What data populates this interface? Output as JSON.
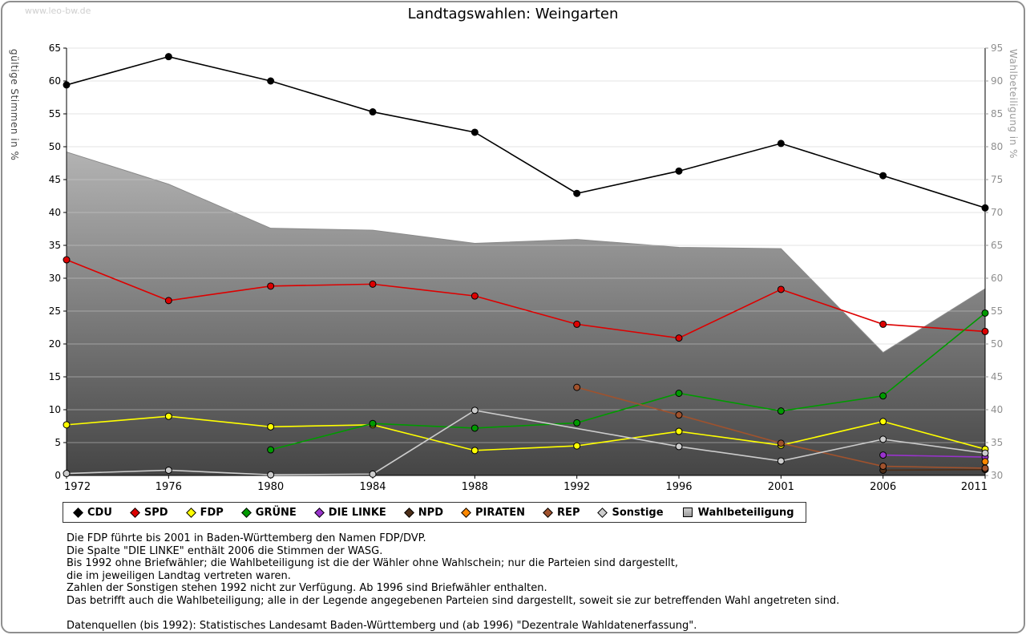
{
  "watermark": "www.leo-bw.de",
  "chart_data": {
    "type": "line",
    "title": "Landtagswahlen: Weingarten",
    "x": [
      1972,
      1976,
      1980,
      1984,
      1988,
      1992,
      1996,
      2001,
      2006,
      2011
    ],
    "ylabel_left": "gültige Stimmen in %",
    "ylabel_right": "Wahlbeteiligung in %",
    "ylim_left": [
      0,
      65
    ],
    "ylim_right": [
      30,
      95
    ],
    "ytick_step": 5,
    "grid": "horizontal",
    "series": [
      {
        "name": "CDU",
        "color": "#000000",
        "axis": "left",
        "values": [
          59.4,
          63.7,
          60.0,
          55.3,
          52.2,
          42.9,
          46.3,
          50.5,
          45.6,
          40.7
        ]
      },
      {
        "name": "SPD",
        "color": "#dd0000",
        "axis": "left",
        "values": [
          32.8,
          26.6,
          28.8,
          29.1,
          27.3,
          23.0,
          20.9,
          28.3,
          23.0,
          21.9
        ]
      },
      {
        "name": "FDP",
        "color": "#ffff00",
        "axis": "left",
        "values": [
          7.7,
          9.0,
          7.4,
          7.7,
          3.8,
          4.5,
          6.7,
          4.6,
          8.2,
          4.0
        ]
      },
      {
        "name": "GRÜNE",
        "color": "#009a00",
        "axis": "left",
        "values": [
          null,
          null,
          3.9,
          7.9,
          7.2,
          8.0,
          12.5,
          9.8,
          12.1,
          24.7
        ]
      },
      {
        "name": "DIE LINKE",
        "color": "#9933cc",
        "axis": "left",
        "values": [
          null,
          null,
          null,
          null,
          null,
          null,
          null,
          null,
          3.1,
          2.8
        ]
      },
      {
        "name": "NPD",
        "color": "#4d2e18",
        "axis": "left",
        "values": [
          null,
          null,
          null,
          null,
          null,
          null,
          null,
          null,
          0.8,
          0.9
        ]
      },
      {
        "name": "PIRATEN",
        "color": "#ff8800",
        "axis": "left",
        "values": [
          null,
          null,
          null,
          null,
          null,
          null,
          null,
          null,
          null,
          2.1
        ]
      },
      {
        "name": "REP",
        "color": "#a0522d",
        "axis": "left",
        "values": [
          null,
          null,
          null,
          null,
          null,
          13.4,
          9.2,
          4.9,
          1.4,
          1.1
        ]
      },
      {
        "name": "Sonstige",
        "color": "#cccccc",
        "axis": "left",
        "values": [
          0.3,
          0.8,
          0.1,
          0.2,
          9.9,
          null,
          4.4,
          2.2,
          5.5,
          3.4
        ]
      }
    ],
    "area_series": {
      "name": "Wahlbeteiligung",
      "axis": "right",
      "values": [
        79.2,
        74.3,
        67.6,
        67.3,
        65.3,
        65.9,
        64.7,
        64.5,
        48.7,
        58.4
      ],
      "fill_top": "#d6d6d6",
      "fill_bottom": "#454545",
      "edge_color": "#8a8a8a"
    }
  },
  "legend": {
    "items": [
      {
        "label": "CDU",
        "color": "#000000",
        "shape": "diamond"
      },
      {
        "label": "SPD",
        "color": "#dd0000",
        "shape": "diamond"
      },
      {
        "label": "FDP",
        "color": "#ffff00",
        "shape": "diamond"
      },
      {
        "label": "GRÜNE",
        "color": "#009a00",
        "shape": "diamond"
      },
      {
        "label": "DIE LINKE",
        "color": "#9933cc",
        "shape": "diamond"
      },
      {
        "label": "NPD",
        "color": "#4d2e18",
        "shape": "diamond"
      },
      {
        "label": "PIRATEN",
        "color": "#ff8800",
        "shape": "diamond"
      },
      {
        "label": "REP",
        "color": "#a0522d",
        "shape": "diamond"
      },
      {
        "label": "Sonstige",
        "color": "#cccccc",
        "shape": "diamond"
      },
      {
        "label": "Wahlbeteiligung",
        "color": "#bbbbbb",
        "shape": "square"
      }
    ]
  },
  "footnotes": [
    "Die FDP führte bis 2001 in Baden-Württemberg den Namen FDP/DVP.",
    "Die Spalte \"DIE LINKE\" enthält 2006 die Stimmen der WASG.",
    "Bis 1992 ohne Briefwähler; die Wahlbeteiligung ist die der Wähler ohne Wahlschein; nur die Parteien sind dargestellt,",
    "die im jeweiligen Landtag vertreten waren.",
    "Zahlen der Sonstigen stehen 1992 nicht zur Verfügung. Ab 1996 sind Briefwähler enthalten.",
    "Das betrifft auch die Wahlbeteiligung; alle in der Legende angegebenen Parteien sind dargestellt, soweit sie zur betreffenden Wahl angetreten sind.",
    "",
    "Datenquellen (bis 1992): Statistisches Landesamt Baden-Württemberg und (ab 1996) \"Dezentrale Wahldatenerfassung\"."
  ]
}
